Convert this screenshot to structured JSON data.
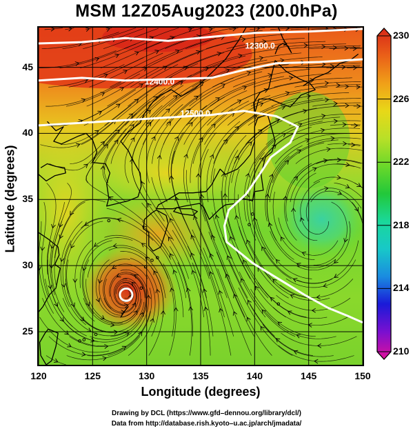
{
  "title": "MSM 12Z05Aug2023 (200.0hPa)",
  "chart_data": {
    "type": "heatmap",
    "overlay": "wind streamlines with geopotential height contours",
    "xlabel": "Longitude (degrees)",
    "ylabel": "Latitude  (degrees)",
    "xlim": [
      120,
      150
    ],
    "ylim": [
      22.5,
      48
    ],
    "xticks": [
      "120",
      "125",
      "130",
      "135",
      "140",
      "145",
      "150"
    ],
    "yticks": [
      "25",
      "30",
      "35",
      "40",
      "45"
    ],
    "contours": [
      {
        "label": "12300.0",
        "points": [
          [
            120,
            46.8
          ],
          [
            124,
            46.9
          ],
          [
            128,
            47.2
          ],
          [
            132,
            47.0
          ],
          [
            136,
            47.3
          ],
          [
            140,
            47.6
          ],
          [
            145,
            47.7
          ],
          [
            150,
            47.9
          ]
        ]
      },
      {
        "label": "12400.0",
        "points": [
          [
            120,
            44.0
          ],
          [
            124,
            44.2
          ],
          [
            128,
            44.0
          ],
          [
            132,
            44.1
          ],
          [
            136,
            44.2
          ],
          [
            139,
            44.8
          ],
          [
            142,
            45.3
          ],
          [
            146,
            45.4
          ],
          [
            150,
            45.6
          ]
        ]
      },
      {
        "label": "12500.0",
        "points": [
          [
            120,
            40.6
          ],
          [
            124,
            40.8
          ],
          [
            128,
            41.0
          ],
          [
            132,
            41.2
          ],
          [
            136,
            41.4
          ],
          [
            139,
            41.7
          ],
          [
            142,
            41.3
          ],
          [
            144,
            40.5
          ],
          [
            143.3,
            39.3
          ],
          [
            141.5,
            38.2
          ],
          [
            140.3,
            36.7
          ],
          [
            139.2,
            35.4
          ],
          [
            137.6,
            34.2
          ],
          [
            137.2,
            33.0
          ],
          [
            137.4,
            31.8
          ],
          [
            138.6,
            31.0
          ],
          [
            139.8,
            30.2
          ],
          [
            141.2,
            29.5
          ],
          [
            142.6,
            28.8
          ],
          [
            144.6,
            27.8
          ],
          [
            146.8,
            26.8
          ],
          [
            148.6,
            26.2
          ],
          [
            150,
            25.7
          ]
        ]
      }
    ],
    "contour_label_positions": [
      {
        "label": "12300.0",
        "lon": 140.5,
        "lat": 46.4
      },
      {
        "label": "12400.0",
        "lon": 131.2,
        "lat": 43.7
      },
      {
        "label": "12500.0",
        "lon": 134.5,
        "lat": 41.3
      },
      {
        "label": "",
        "lon": 140.2,
        "lat": 29.4
      }
    ],
    "typhoon_center": {
      "lon": 128.1,
      "lat": 27.8
    },
    "colorbar": {
      "min": 210,
      "max": 230,
      "ticks": [
        "230",
        "226",
        "222",
        "218",
        "214",
        "210"
      ],
      "colors": [
        "#e0109a",
        "#7a10d0",
        "#1a1ad8",
        "#1a8ce0",
        "#18c8c8",
        "#1ad89a",
        "#22c83a",
        "#6ad82a",
        "#b8e028",
        "#e8d818",
        "#f0a018",
        "#ea6018",
        "#d82818"
      ]
    }
  },
  "credits": {
    "line1": "Drawing by DCL (https://www.gfd–dennou.org/library/dcl/)",
    "line2": "Data from http://database.rish.kyoto–u.ac.jp/arch/jmadata/"
  }
}
